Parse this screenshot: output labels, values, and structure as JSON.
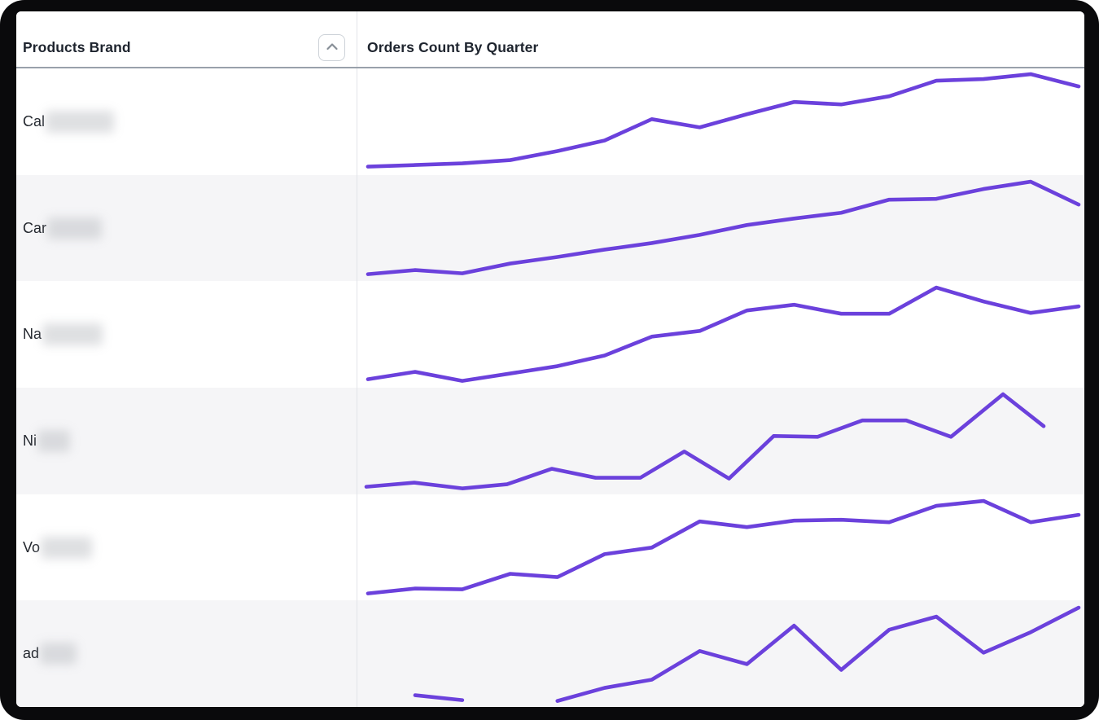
{
  "window": {
    "frame_color": "#0a0a0c"
  },
  "colors": {
    "line": "#6b41dc",
    "row_stripe": "#f5f5f7",
    "header_text": "#1e242e",
    "header_border": "#99a1ab",
    "column_divider": "#e2e4e8",
    "sort_button_border": "#cdd2d8",
    "chevron_icon": "#878f97"
  },
  "table": {
    "columns": [
      {
        "label": "Products Brand"
      },
      {
        "label": "Orders Count By Quarter"
      }
    ],
    "sort_button": {
      "icon": "chevron-up",
      "state": "ascending"
    }
  },
  "rows": [
    {
      "brand_prefix": "Cal",
      "brand_redacted": true,
      "redact_width": 84,
      "striped": false
    },
    {
      "brand_prefix": "Car",
      "brand_redacted": true,
      "redact_width": 67,
      "striped": true
    },
    {
      "brand_prefix": "Na",
      "brand_redacted": true,
      "redact_width": 74,
      "striped": false
    },
    {
      "brand_prefix": "Ni",
      "brand_redacted": true,
      "redact_width": 40,
      "striped": true
    },
    {
      "brand_prefix": "Vo",
      "brand_redacted": true,
      "redact_width": 63,
      "striped": false
    },
    {
      "brand_prefix": "ad",
      "brand_redacted": true,
      "redact_width": 45,
      "striped": true
    }
  ],
  "chart_data": {
    "type": "line",
    "title": "Orders Count By Quarter",
    "xlabel": "Quarter (ticks not shown)",
    "ylabel": "Orders Count (axis not shown)",
    "legend": "none",
    "grid": "off",
    "note": "Sparkline vertex coordinates in cell space 894x130; y=0 is top (higher line = larger count); the 'ad' brand series has a missing-data gap producing two segments; the 'Ni' series ends one period early.",
    "series": [
      {
        "name": "Cal (redacted)",
        "segments": [
          [
            [
              13,
              120
            ],
            [
              71,
              118
            ],
            [
              129,
              116
            ],
            [
              188,
              112
            ],
            [
              246,
              101
            ],
            [
              304,
              88
            ],
            [
              362,
              62
            ],
            [
              421,
              72
            ],
            [
              479,
              56
            ],
            [
              537,
              41
            ],
            [
              595,
              44
            ],
            [
              654,
              34
            ],
            [
              712,
              15
            ],
            [
              770,
              13
            ],
            [
              828,
              7
            ],
            [
              887,
              22
            ]
          ]
        ]
      },
      {
        "name": "Car (redacted)",
        "segments": [
          [
            [
              13,
              121
            ],
            [
              71,
              116
            ],
            [
              129,
              120
            ],
            [
              188,
              108
            ],
            [
              246,
              100
            ],
            [
              304,
              91
            ],
            [
              362,
              83
            ],
            [
              421,
              73
            ],
            [
              479,
              61
            ],
            [
              537,
              53
            ],
            [
              595,
              46
            ],
            [
              654,
              30
            ],
            [
              712,
              29
            ],
            [
              770,
              17
            ],
            [
              828,
              8
            ],
            [
              887,
              36
            ]
          ]
        ]
      },
      {
        "name": "Na (redacted)",
        "segments": [
          [
            [
              13,
              120
            ],
            [
              71,
              111
            ],
            [
              129,
              122
            ],
            [
              188,
              113
            ],
            [
              246,
              104
            ],
            [
              304,
              91
            ],
            [
              362,
              68
            ],
            [
              421,
              61
            ],
            [
              479,
              36
            ],
            [
              537,
              29
            ],
            [
              595,
              40
            ],
            [
              654,
              40
            ],
            [
              712,
              8
            ],
            [
              770,
              25
            ],
            [
              828,
              39
            ],
            [
              887,
              31
            ]
          ]
        ]
      },
      {
        "name": "Ni (redacted)",
        "segments": [
          [
            [
              11,
              121
            ],
            [
              70,
              116
            ],
            [
              129,
              123
            ],
            [
              184,
              118
            ],
            [
              239,
              99
            ],
            [
              293,
              110
            ],
            [
              348,
              110
            ],
            [
              402,
              78
            ],
            [
              457,
              111
            ],
            [
              512,
              59
            ],
            [
              566,
              60
            ],
            [
              621,
              40
            ],
            [
              675,
              40
            ],
            [
              730,
              60
            ],
            [
              794,
              8
            ],
            [
              844,
              47
            ]
          ]
        ]
      },
      {
        "name": "Vo (redacted)",
        "segments": [
          [
            [
              13,
              121
            ],
            [
              71,
              115
            ],
            [
              129,
              116
            ],
            [
              188,
              97
            ],
            [
              246,
              101
            ],
            [
              304,
              73
            ],
            [
              362,
              65
            ],
            [
              421,
              33
            ],
            [
              479,
              40
            ],
            [
              537,
              32
            ],
            [
              595,
              31
            ],
            [
              654,
              34
            ],
            [
              712,
              14
            ],
            [
              770,
              8
            ],
            [
              828,
              34
            ],
            [
              887,
              25
            ]
          ]
        ]
      },
      {
        "name": "ad (redacted)",
        "segments": [
          [
            [
              71,
              116
            ],
            [
              129,
              122
            ]
          ],
          [
            [
              246,
              123
            ],
            [
              304,
              107
            ],
            [
              362,
              97
            ],
            [
              421,
              62
            ],
            [
              479,
              78
            ],
            [
              537,
              31
            ],
            [
              595,
              85
            ],
            [
              654,
              36
            ],
            [
              712,
              20
            ],
            [
              770,
              64
            ],
            [
              828,
              39
            ],
            [
              887,
              9
            ]
          ]
        ]
      }
    ]
  }
}
